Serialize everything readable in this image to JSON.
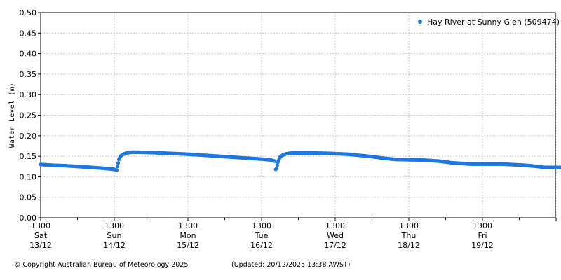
{
  "chart_data": {
    "type": "scatter",
    "title": "",
    "xlabel": "",
    "ylabel": "Water Level (m)",
    "ylim": [
      0,
      0.5
    ],
    "yticks": [
      "0.00",
      "0.05",
      "0.10",
      "0.15",
      "0.20",
      "0.25",
      "0.30",
      "0.35",
      "0.40",
      "0.45",
      "0.50"
    ],
    "x_range_hours": [
      0,
      168
    ],
    "grid": true,
    "legend_position": "top-right",
    "colors": {
      "series": "#1f77e0",
      "grid": "#c8c8c8",
      "axis": "#000000"
    },
    "xtick_days": [
      {
        "time": "1300",
        "day": "Sat",
        "date": "13/12"
      },
      {
        "time": "1300",
        "day": "Sun",
        "date": "14/12"
      },
      {
        "time": "1300",
        "day": "Mon",
        "date": "15/12"
      },
      {
        "time": "1300",
        "day": "Tue",
        "date": "16/12"
      },
      {
        "time": "1300",
        "day": "Wed",
        "date": "17/12"
      },
      {
        "time": "1300",
        "day": "Thu",
        "date": "18/12"
      },
      {
        "time": "1300",
        "day": "Fri",
        "date": "19/12"
      }
    ],
    "series": [
      {
        "name": "Hay River at Sunny Glen (509474)",
        "x_unit": "hours since 13/12 13:00",
        "points": [
          [
            0,
            0.13
          ],
          [
            4,
            0.128
          ],
          [
            8,
            0.127
          ],
          [
            12,
            0.125
          ],
          [
            16,
            0.123
          ],
          [
            20,
            0.121
          ],
          [
            24,
            0.118
          ],
          [
            24.8,
            0.116
          ],
          [
            25,
            0.125
          ],
          [
            25.5,
            0.142
          ],
          [
            26,
            0.15
          ],
          [
            27,
            0.155
          ],
          [
            28,
            0.158
          ],
          [
            30,
            0.16
          ],
          [
            36,
            0.159
          ],
          [
            42,
            0.157
          ],
          [
            48,
            0.155
          ],
          [
            54,
            0.152
          ],
          [
            60,
            0.149
          ],
          [
            66,
            0.146
          ],
          [
            72,
            0.143
          ],
          [
            75,
            0.141
          ],
          [
            76.3,
            0.138
          ],
          [
            76.6,
            0.118
          ],
          [
            76.9,
            0.12
          ],
          [
            77.3,
            0.135
          ],
          [
            78,
            0.148
          ],
          [
            79,
            0.153
          ],
          [
            80,
            0.156
          ],
          [
            82,
            0.158
          ],
          [
            88,
            0.158
          ],
          [
            94,
            0.157
          ],
          [
            100,
            0.155
          ],
          [
            104,
            0.152
          ],
          [
            108,
            0.149
          ],
          [
            112,
            0.145
          ],
          [
            116,
            0.142
          ],
          [
            124,
            0.141
          ],
          [
            130,
            0.138
          ],
          [
            134,
            0.134
          ],
          [
            140,
            0.131
          ],
          [
            150,
            0.131
          ],
          [
            158,
            0.128
          ],
          [
            162,
            0.125
          ],
          [
            164,
            0.123
          ],
          [
            168,
            0.123
          ],
          [
            172,
            0.122
          ],
          [
            174,
            0.121
          ],
          [
            175,
            0.12
          ]
        ]
      }
    ]
  },
  "footer": {
    "copyright": "© Copyright Australian Bureau of Meteorology 2025",
    "updated": "(Updated: 20/12/2025 13:38 AWST)"
  }
}
